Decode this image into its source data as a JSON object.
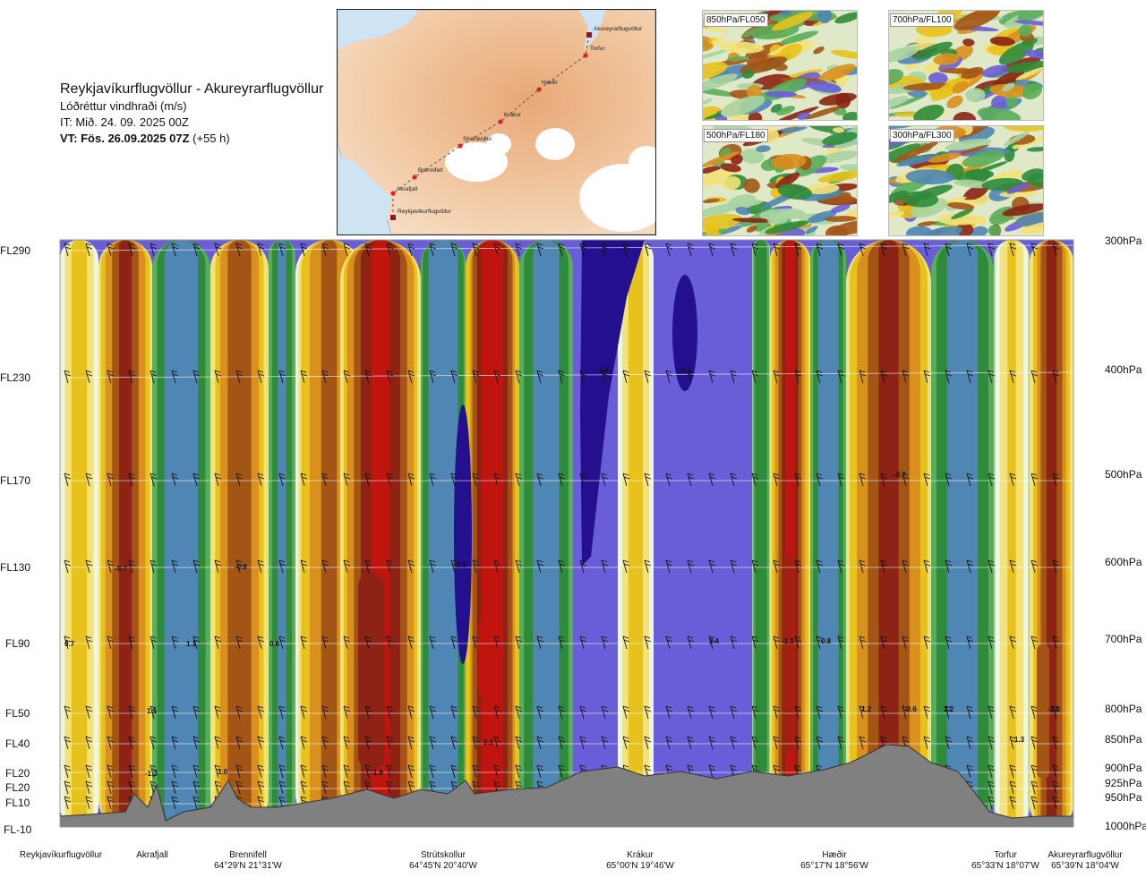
{
  "header": {
    "route": "Reykjavíkurflugvöllur - Akureyrarflugvöllur",
    "parameter": "Lóðréttur vindhraði (m/s)",
    "issue_time": "IT: Mið. 24. 09. 2025 00Z",
    "valid_time": "VT: Fös. 26.09.2025 07Z",
    "valid_offset": "(+55 h)"
  },
  "map": {
    "waypoints": [
      "Akureyrarflugvöllur",
      "Torfur",
      "Hæðir",
      "Krákur",
      "Strútskollur",
      "Brennifell",
      "Akrafjall",
      "Reykjavíkurflugvöllur"
    ]
  },
  "thumbnails": [
    {
      "label": "850hPa/FL050"
    },
    {
      "label": "700hPa/FL100"
    },
    {
      "label": "500hPa/FL180"
    },
    {
      "label": "300hPa/FL300"
    }
  ],
  "chart_data": {
    "type": "heatmap",
    "levels": [
      {
        "fl": "FL290",
        "hpa": "300hPa"
      },
      {
        "fl": "FL230",
        "hpa": "400hPa"
      },
      {
        "fl": "FL170",
        "hpa": "500hPa"
      },
      {
        "fl": "FL130",
        "hpa": "600hPa"
      },
      {
        "fl": "FL90",
        "hpa": "700hPa"
      },
      {
        "fl": "FL50",
        "hpa": "800hPa"
      },
      {
        "fl": "FL40",
        "hpa": "850hPa"
      },
      {
        "fl": "FL20",
        "hpa": "900hPa"
      },
      {
        "fl": "FL20",
        "hpa": "925hPa"
      },
      {
        "fl": "FL10",
        "hpa": "950hPa"
      },
      {
        "fl": "FL-10",
        "hpa": "1000hPa"
      }
    ],
    "stations": [
      {
        "name": "Reykjavíkurflugvöllur",
        "coord": ""
      },
      {
        "name": "Akrafjall",
        "coord": ""
      },
      {
        "name": "Brennifell",
        "coord": "64°29'N 21°31'W"
      },
      {
        "name": "Strútskollur",
        "coord": "64°45'N 20°40'W"
      },
      {
        "name": "Krákur",
        "coord": "65°00'N 19°46'W"
      },
      {
        "name": "Hæðir",
        "coord": "65°17'N 18°56'W"
      },
      {
        "name": "Torfur",
        "coord": "65°33'N 18°07'W"
      },
      {
        "name": "Akureyrarflugvöllur",
        "coord": "65°39'N 18°04'W"
      }
    ],
    "value_labels": [
      "-0.7",
      "-0.8",
      "0.7",
      "1.1",
      "0.6",
      "1.1",
      "-1.3",
      "1.0",
      "-1.9",
      "-0.6",
      "3.1",
      "-1.6",
      "-0.1",
      "2.4",
      "-1.1",
      "0.8",
      "1.2",
      "-0.6",
      "2.2",
      "-1.0",
      "-0.7",
      "1.3"
    ],
    "colors": {
      "strong_down_dark": "#24108f",
      "down": "#6a5ed8",
      "down_light": "#4f86b4",
      "weak_pos_1": "#2e8b3a",
      "weak_pos_2": "#5aad5a",
      "weak_pos_3": "#a8d4a0",
      "neutral": "#eef5e0",
      "up_1": "#f3e27a",
      "up_2": "#e7c21c",
      "up_3": "#d9901e",
      "up_4": "#a35516",
      "up_5": "#8c2314",
      "up_6": "#c0140f",
      "terrain": "#808080"
    }
  }
}
